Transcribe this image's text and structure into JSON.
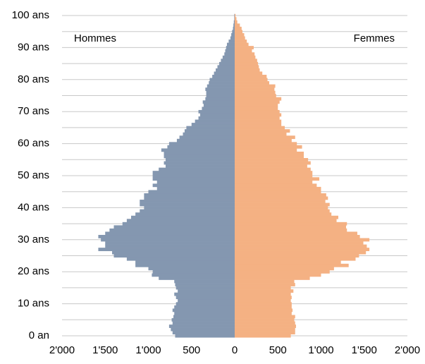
{
  "chart_data": {
    "type": "pyramid",
    "y": [
      0,
      1,
      2,
      3,
      4,
      5,
      6,
      7,
      8,
      9,
      10,
      11,
      12,
      13,
      14,
      15,
      16,
      17,
      18,
      19,
      20,
      21,
      22,
      23,
      24,
      25,
      26,
      27,
      28,
      29,
      30,
      31,
      32,
      33,
      34,
      35,
      36,
      37,
      38,
      39,
      40,
      41,
      42,
      43,
      44,
      45,
      46,
      47,
      48,
      49,
      50,
      51,
      52,
      53,
      54,
      55,
      56,
      57,
      58,
      59,
      60,
      61,
      62,
      63,
      64,
      65,
      66,
      67,
      68,
      69,
      70,
      71,
      72,
      73,
      74,
      75,
      76,
      77,
      78,
      79,
      80,
      81,
      82,
      83,
      84,
      85,
      86,
      87,
      88,
      89,
      90,
      91,
      92,
      93,
      94,
      95,
      96,
      97,
      98,
      99,
      100
    ],
    "series": [
      {
        "name": "Hommes",
        "color": "#8497b0",
        "values": [
          -690,
          -720,
          -740,
          -760,
          -720,
          -730,
          -710,
          -700,
          -720,
          -700,
          -680,
          -660,
          -680,
          -700,
          -660,
          -680,
          -690,
          -700,
          -880,
          -960,
          -950,
          -1000,
          -1150,
          -1150,
          -1250,
          -1400,
          -1420,
          -1580,
          -1500,
          -1500,
          -1550,
          -1580,
          -1500,
          -1450,
          -1400,
          -1300,
          -1250,
          -1200,
          -1150,
          -1100,
          -1050,
          -1100,
          -1100,
          -1050,
          -1050,
          -1000,
          -900,
          -950,
          -900,
          -950,
          -950,
          -950,
          -880,
          -800,
          -820,
          -800,
          -820,
          -820,
          -850,
          -780,
          -760,
          -670,
          -640,
          -600,
          -580,
          -560,
          -500,
          -460,
          -420,
          -400,
          -420,
          -380,
          -360,
          -370,
          -340,
          -330,
          -330,
          -340,
          -320,
          -300,
          -290,
          -260,
          -240,
          -220,
          -200,
          -180,
          -160,
          -140,
          -120,
          -110,
          -100,
          -90,
          -70,
          -50,
          -40,
          -30,
          -20,
          -15,
          -10,
          -5,
          -5
        ]
      },
      {
        "name": "Femmes",
        "color": "#f4b183",
        "values": [
          650,
          700,
          700,
          710,
          700,
          690,
          700,
          660,
          670,
          660,
          660,
          650,
          660,
          650,
          680,
          650,
          700,
          690,
          870,
          1000,
          1100,
          1150,
          1320,
          1230,
          1400,
          1440,
          1520,
          1560,
          1530,
          1490,
          1560,
          1450,
          1420,
          1300,
          1290,
          1300,
          1180,
          1200,
          1120,
          1100,
          1080,
          1100,
          1050,
          1080,
          1060,
          1000,
          1000,
          950,
          900,
          980,
          900,
          900,
          880,
          840,
          880,
          850,
          800,
          800,
          720,
          780,
          720,
          660,
          700,
          600,
          640,
          580,
          540,
          540,
          520,
          540,
          520,
          500,
          500,
          520,
          540,
          480,
          470,
          460,
          470,
          400,
          380,
          370,
          320,
          290,
          280,
          270,
          260,
          240,
          230,
          200,
          220,
          160,
          140,
          120,
          110,
          90,
          80,
          60,
          30,
          20,
          10
        ]
      }
    ],
    "xlim": [
      -2000,
      2000
    ],
    "xticks": [
      {
        "value": -2000,
        "label": "2'000"
      },
      {
        "value": -1500,
        "label": "1'500"
      },
      {
        "value": -1000,
        "label": "1'000"
      },
      {
        "value": -500,
        "label": "500"
      },
      0,
      500,
      {
        "value": 1000,
        "label": "1'000"
      },
      {
        "value": 1500,
        "label": "1'500"
      },
      {
        "value": 2000,
        "label": "2'000"
      }
    ],
    "ylim": [
      0,
      100
    ],
    "yticks": [
      {
        "value": 0,
        "label": "0 an"
      },
      {
        "value": 10,
        "label": "10 ans"
      },
      {
        "value": 20,
        "label": "20 ans"
      },
      {
        "value": 30,
        "label": "30 ans"
      },
      {
        "value": 40,
        "label": "40 ans"
      },
      {
        "value": 50,
        "label": "50 ans"
      },
      {
        "value": 60,
        "label": "60 ans"
      },
      {
        "value": 70,
        "label": "70 ans"
      },
      {
        "value": 80,
        "label": "80 ans"
      },
      {
        "value": 90,
        "label": "90 ans"
      },
      {
        "value": 100,
        "label": "100 ans"
      }
    ],
    "ygrid": [
      0,
      5,
      10,
      15,
      20,
      25,
      30,
      35,
      40,
      45,
      50,
      55,
      60,
      65,
      70,
      75,
      80,
      85,
      90,
      95,
      100
    ]
  }
}
